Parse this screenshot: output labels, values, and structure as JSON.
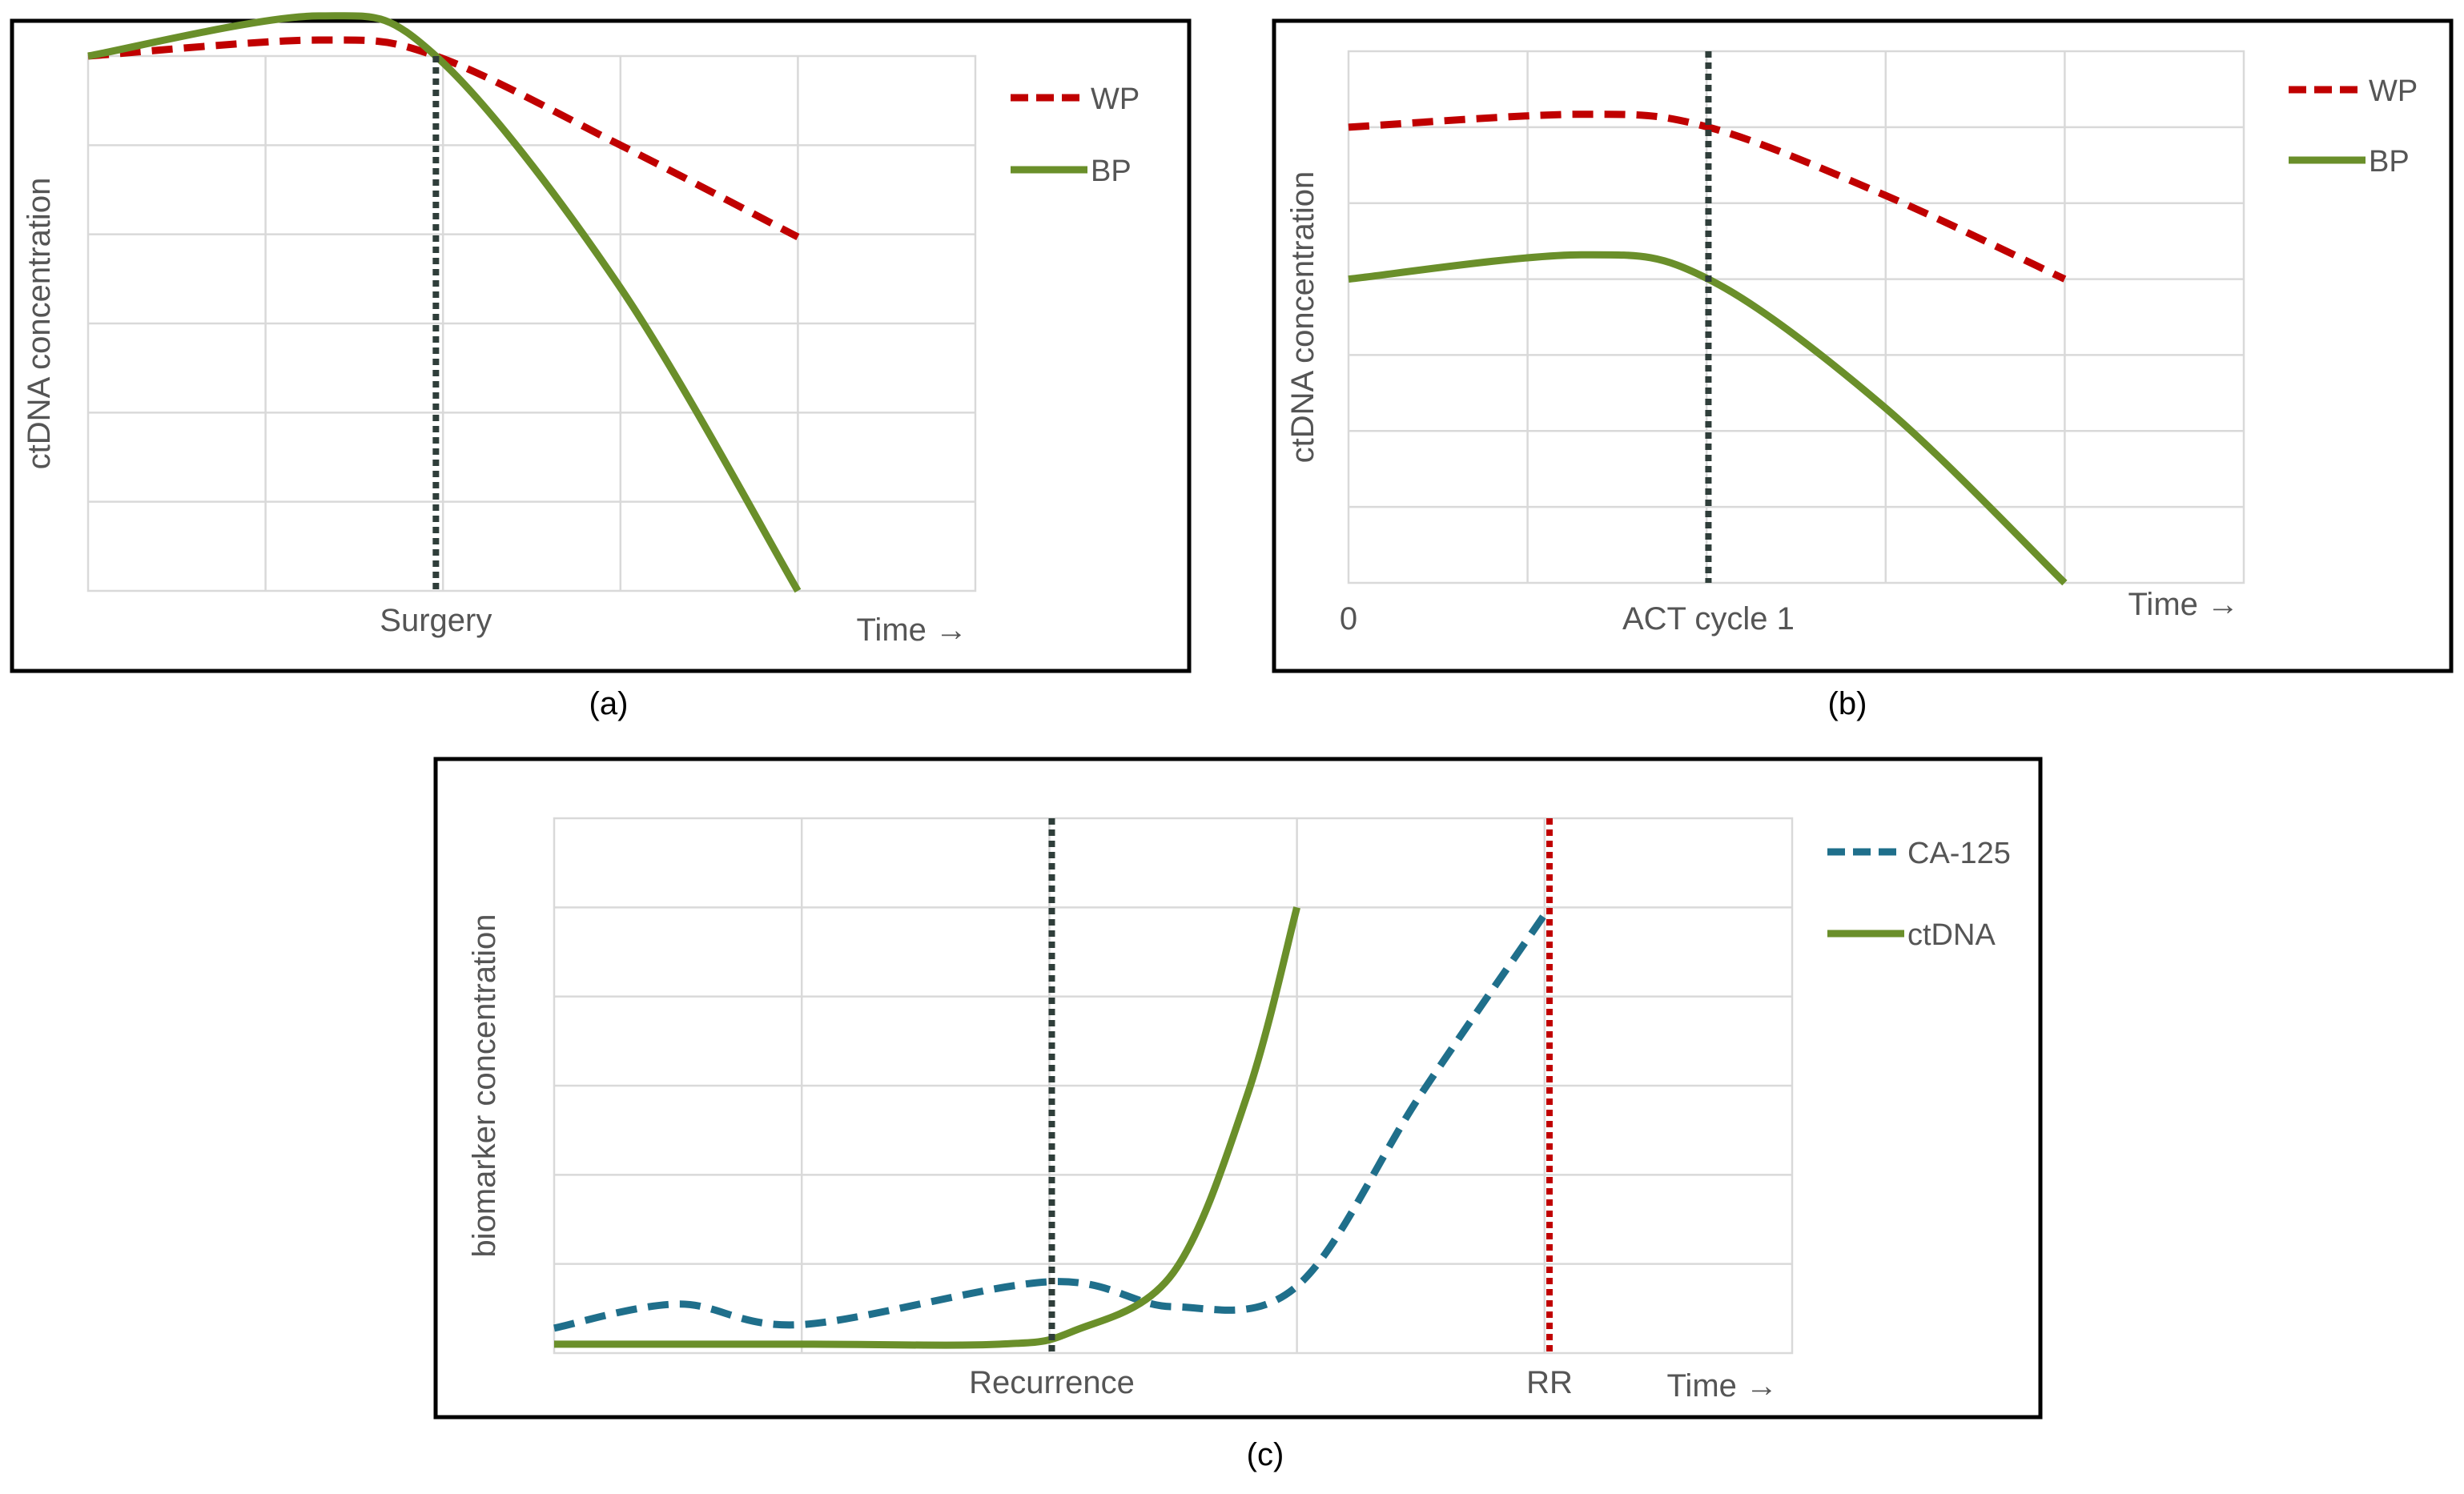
{
  "colors": {
    "wp": "#c00000",
    "bp": "#6a8f2a",
    "ca125": "#1f6f8b",
    "ctdna": "#6a8f2a",
    "marker_dark": "#2f3e3a",
    "marker_red": "#c00000",
    "grid": "#d9d9d9"
  },
  "chart_data": [
    {
      "id": "a",
      "type": "line",
      "caption": "(a)",
      "ylabel": "ctDNA concentration",
      "xlabel": "Time →",
      "xlim": [
        0,
        5
      ],
      "ylim": [
        0,
        6
      ],
      "vertical_marker": {
        "x": 1.96,
        "label": "Surgery",
        "style": "dark"
      },
      "tick_labels": [],
      "series": [
        {
          "name": "WP",
          "style": "dashed",
          "color": "wp",
          "points": [
            [
              0,
              6.0
            ],
            [
              1.3,
              6.18
            ],
            [
              1.96,
              6.0
            ],
            [
              3.0,
              5.0
            ],
            [
              4.0,
              3.97
            ]
          ]
        },
        {
          "name": "BP",
          "style": "solid",
          "color": "bp",
          "points": [
            [
              0,
              6.0
            ],
            [
              1.3,
              6.45
            ],
            [
              1.96,
              6.0
            ],
            [
              3.0,
              3.4
            ],
            [
              4.0,
              0.0
            ]
          ]
        }
      ]
    },
    {
      "id": "b",
      "type": "line",
      "caption": "(b)",
      "ylabel": "ctDNA concentration",
      "xlabel": "Time →",
      "xlim": [
        0,
        5
      ],
      "ylim": [
        0,
        7
      ],
      "vertical_marker": {
        "x": 2.01,
        "label": "ACT cycle 1",
        "style": "dark"
      },
      "tick_labels": [
        {
          "x": 0,
          "label": "0"
        }
      ],
      "series": [
        {
          "name": "WP",
          "style": "dashed",
          "color": "wp",
          "points": [
            [
              0,
              6.0
            ],
            [
              1.3,
              6.17
            ],
            [
              2.01,
              6.0
            ],
            [
              3.0,
              5.1
            ],
            [
              4.0,
              4.0
            ]
          ]
        },
        {
          "name": "BP",
          "style": "solid",
          "color": "bp",
          "points": [
            [
              0,
              4.0
            ],
            [
              1.3,
              4.32
            ],
            [
              2.01,
              4.0
            ],
            [
              3.0,
              2.3
            ],
            [
              4.0,
              0.0
            ]
          ]
        }
      ]
    },
    {
      "id": "c",
      "type": "line",
      "caption": "(c)",
      "ylabel": "biomarker concentration",
      "xlabel": "Time →",
      "xlim": [
        0,
        5
      ],
      "ylim": [
        0,
        6
      ],
      "vertical_marker": {
        "x": 2.01,
        "label": "Recurrence",
        "style": "dark"
      },
      "second_marker": {
        "x": 4.02,
        "label": "RR",
        "style": "red"
      },
      "tick_labels": [],
      "series": [
        {
          "name": "CA-125",
          "style": "dashed",
          "color": "ca125",
          "points": [
            [
              0,
              0.28
            ],
            [
              0.5,
              0.55
            ],
            [
              1.0,
              0.32
            ],
            [
              2.0,
              0.8
            ],
            [
              2.5,
              0.52
            ],
            [
              3.0,
              0.75
            ],
            [
              3.5,
              2.9
            ],
            [
              4.02,
              5.0
            ]
          ]
        },
        {
          "name": "ctDNA",
          "style": "solid",
          "color": "ctdna",
          "points": [
            [
              0,
              0.1
            ],
            [
              1.0,
              0.1
            ],
            [
              1.8,
              0.1
            ],
            [
              2.1,
              0.25
            ],
            [
              2.5,
              0.9
            ],
            [
              2.8,
              2.9
            ],
            [
              3.0,
              5.0
            ]
          ]
        }
      ]
    }
  ]
}
